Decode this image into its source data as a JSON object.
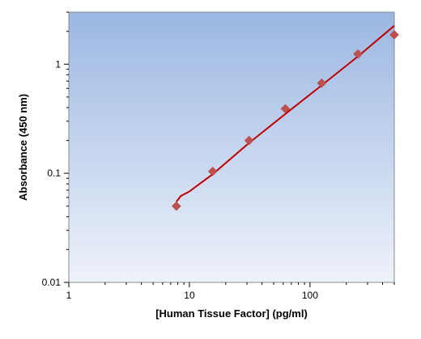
{
  "chart_data": {
    "type": "scatter",
    "title": "",
    "xlabel": "[Human Tissue Factor] (pg/ml)",
    "ylabel": "Absorbance (450 nm)",
    "x_scale": "log",
    "y_scale": "log",
    "xlim": [
      1,
      500
    ],
    "ylim": [
      0.01,
      3
    ],
    "x_ticks": [
      1,
      10,
      100
    ],
    "x_tick_labels": [
      "1",
      "10",
      "100"
    ],
    "y_ticks": [
      0.01,
      0.1,
      1
    ],
    "y_tick_labels": [
      "0.01",
      "0.1",
      "1"
    ],
    "grid": false,
    "legend": "none",
    "series": [
      {
        "kind": "points",
        "marker": "diamond",
        "color": "#c0504d",
        "x": [
          7.8,
          15.6,
          31.25,
          62.5,
          125,
          250,
          500
        ],
        "y": [
          0.05,
          0.104,
          0.2,
          0.39,
          0.67,
          1.24,
          1.86
        ]
      },
      {
        "kind": "fit",
        "color": "#c00000",
        "x": [
          7.8,
          8.5,
          10,
          15.6,
          31.25,
          62.5,
          125,
          250,
          500
        ],
        "y": [
          0.055,
          0.062,
          0.068,
          0.098,
          0.19,
          0.35,
          0.64,
          1.18,
          2.25
        ]
      }
    ],
    "colors": {
      "plot_bg_top": "#9bb7e2",
      "plot_bg_bottom": "#eef2fa",
      "frame": "#8a8a8a"
    }
  }
}
